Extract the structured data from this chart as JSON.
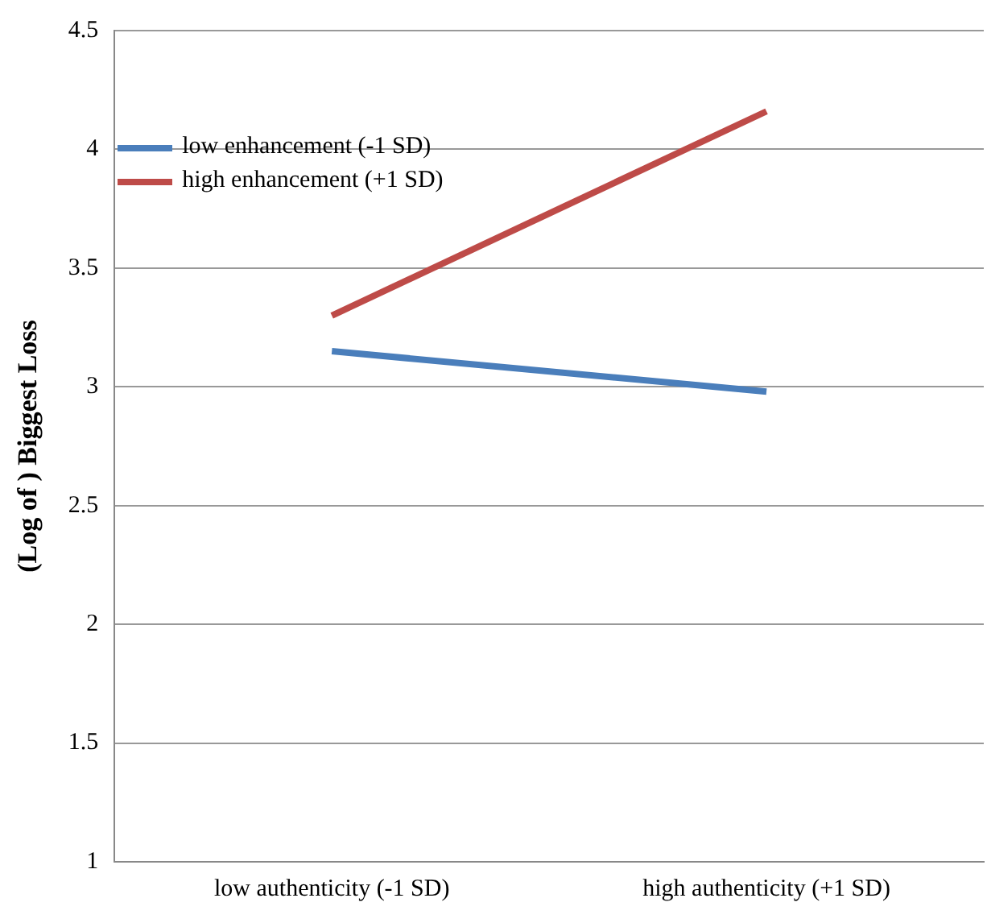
{
  "chart_data": {
    "type": "line",
    "ylabel": "(Log of ) Biggest Loss",
    "categories": [
      "low authenticity (-1 SD)",
      "high authenticity (+1 SD)"
    ],
    "series": [
      {
        "name": "low enhancement (-1 SD)",
        "color": "#4a7ebb",
        "values": [
          3.15,
          2.98
        ]
      },
      {
        "name": "high enhancement (+1 SD)",
        "color": "#be4b48",
        "values": [
          3.3,
          4.16
        ]
      }
    ],
    "ylim": [
      1,
      4.5
    ],
    "yticks": [
      1,
      1.5,
      2,
      2.5,
      3,
      3.5,
      4,
      4.5
    ],
    "grid": "y",
    "legend": "top left",
    "marker": "none",
    "line_style": "solid"
  }
}
